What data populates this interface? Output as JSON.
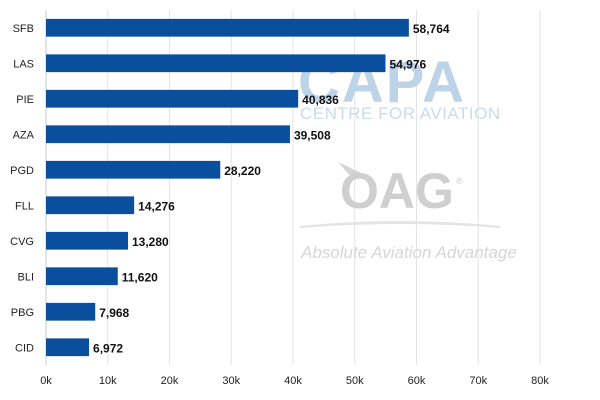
{
  "chart_data": {
    "type": "bar",
    "orientation": "horizontal",
    "categories": [
      "SFB",
      "LAS",
      "PIE",
      "AZA",
      "PGD",
      "FLL",
      "CVG",
      "BLI",
      "PBG",
      "CID"
    ],
    "values": [
      58764,
      54976,
      40836,
      39508,
      28220,
      14276,
      13280,
      11620,
      7968,
      6972
    ],
    "value_labels": [
      "58,764",
      "54,976",
      "40,836",
      "39,508",
      "28,220",
      "14,276",
      "13,280",
      "11,620",
      "7,968",
      "6,972"
    ],
    "xlim": [
      0,
      80000
    ],
    "x_ticks": [
      0,
      10000,
      20000,
      30000,
      40000,
      50000,
      60000,
      70000,
      80000
    ],
    "x_tick_labels": [
      "0k",
      "10k",
      "20k",
      "30k",
      "40k",
      "50k",
      "60k",
      "70k",
      "80k"
    ],
    "title": "",
    "xlabel": "",
    "ylabel": "",
    "grid": true,
    "legend": false,
    "bar_color": "#0a4f9e"
  },
  "watermarks": {
    "capa": "CAPA",
    "capa_sub": "CENTRE FOR AVIATION",
    "oag": "OAG",
    "oag_reg": "®",
    "oag_tagline": "Absolute Aviation Advantage"
  }
}
